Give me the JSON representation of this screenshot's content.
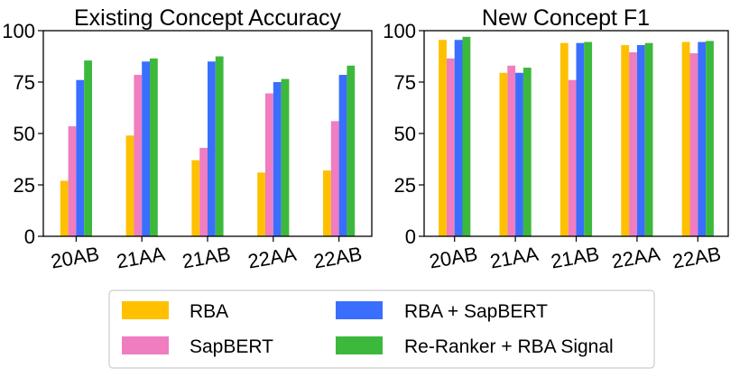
{
  "chart_data": [
    {
      "type": "bar",
      "title": "Existing Concept Accuracy",
      "categories": [
        "20AB",
        "21AA",
        "21AB",
        "22AA",
        "22AB"
      ],
      "ylim": [
        0,
        100
      ],
      "yticks": [
        0,
        25,
        50,
        75,
        100
      ],
      "grid": false,
      "series": [
        {
          "name": "RBA",
          "values": [
            27,
            49,
            37,
            31,
            32
          ]
        },
        {
          "name": "SapBERT",
          "values": [
            53.5,
            78.5,
            43,
            69.5,
            56
          ]
        },
        {
          "name": "RBA + SapBERT",
          "values": [
            76,
            85,
            85,
            75,
            78.5
          ]
        },
        {
          "name": "Re-Ranker + RBA Signal",
          "values": [
            85.5,
            86.5,
            87.5,
            76.5,
            83
          ]
        }
      ]
    },
    {
      "type": "bar",
      "title": "New Concept F1",
      "categories": [
        "20AB",
        "21AA",
        "21AB",
        "22AA",
        "22AB"
      ],
      "ylim": [
        0,
        100
      ],
      "yticks": [
        0,
        25,
        50,
        75,
        100
      ],
      "grid": false,
      "series": [
        {
          "name": "RBA",
          "values": [
            95.5,
            79.5,
            94,
            93,
            94.5
          ]
        },
        {
          "name": "SapBERT",
          "values": [
            86.5,
            83,
            76,
            89.5,
            89
          ]
        },
        {
          "name": "RBA + SapBERT",
          "values": [
            95.5,
            79.5,
            94,
            93,
            94.5
          ]
        },
        {
          "name": "Re-Ranker + RBA Signal",
          "values": [
            97,
            82,
            94.5,
            94,
            95
          ]
        }
      ]
    }
  ],
  "legend": {
    "placement": "bottom-center",
    "entries": [
      {
        "label": "RBA",
        "color": "#FFC000"
      },
      {
        "label": "SapBERT",
        "color": "#EF7DC0"
      },
      {
        "label": "RBA + SapBERT",
        "color": "#3A6EFF"
      },
      {
        "label": "Re-Ranker + RBA Signal",
        "color": "#3CB93C"
      }
    ]
  },
  "colors": [
    "#FFC000",
    "#EF7DC0",
    "#3A6EFF",
    "#3CB93C"
  ]
}
